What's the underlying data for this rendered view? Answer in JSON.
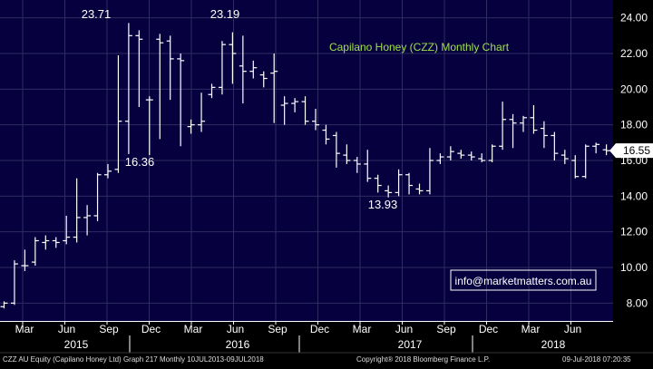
{
  "chart_data": {
    "type": "ohlc",
    "title": "Capilano Honey (CZZ) Monthly Chart",
    "ylim": [
      7,
      25
    ],
    "y_ticks": [
      "8.00",
      "10.00",
      "12.00",
      "14.00",
      "16.00",
      "18.00",
      "20.00",
      "22.00",
      "24.00"
    ],
    "grid": true,
    "last_price_label": "16.55",
    "x_month_labels": [
      "Mar",
      "Jun",
      "Sep",
      "Dec",
      "Mar",
      "Jun",
      "Sep",
      "Dec",
      "Mar",
      "Jun",
      "Sep",
      "Dec",
      "Mar",
      "Jun"
    ],
    "x_year_labels": [
      "2015",
      "2016",
      "2017",
      "2018"
    ],
    "annotations": [
      "23.71",
      "23.19",
      "16.36",
      "13.93"
    ],
    "watermark": "info@marketmatters.com.au",
    "bars": [
      {
        "o": 7.8,
        "h": 8.1,
        "l": 7.7,
        "c": 8.0
      },
      {
        "o": 8.0,
        "h": 10.4,
        "l": 7.9,
        "c": 10.2
      },
      {
        "o": 10.1,
        "h": 11.0,
        "l": 9.8,
        "c": 10.1
      },
      {
        "o": 10.3,
        "h": 11.7,
        "l": 10.1,
        "c": 11.5
      },
      {
        "o": 11.4,
        "h": 11.8,
        "l": 11.0,
        "c": 11.5
      },
      {
        "o": 11.5,
        "h": 11.7,
        "l": 11.1,
        "c": 11.4
      },
      {
        "o": 11.5,
        "h": 12.9,
        "l": 11.3,
        "c": 11.7
      },
      {
        "o": 11.7,
        "h": 15.0,
        "l": 11.4,
        "c": 12.8
      },
      {
        "o": 12.8,
        "h": 13.5,
        "l": 11.8,
        "c": 12.9
      },
      {
        "o": 12.9,
        "h": 15.3,
        "l": 12.6,
        "c": 15.2
      },
      {
        "o": 15.2,
        "h": 15.8,
        "l": 15.0,
        "c": 15.4
      },
      {
        "o": 15.5,
        "h": 21.9,
        "l": 15.3,
        "c": 18.2
      },
      {
        "o": 18.2,
        "h": 23.71,
        "l": 16.36,
        "c": 23.0
      },
      {
        "o": 23.0,
        "h": 23.3,
        "l": 19.0,
        "c": 22.8
      },
      {
        "o": 19.4,
        "h": 19.6,
        "l": 16.3,
        "c": 19.4
      },
      {
        "o": 22.8,
        "h": 23.1,
        "l": 17.2,
        "c": 22.6
      },
      {
        "o": 22.7,
        "h": 23.0,
        "l": 19.4,
        "c": 21.7
      },
      {
        "o": 21.7,
        "h": 22.0,
        "l": 16.8,
        "c": 21.6
      },
      {
        "o": 17.9,
        "h": 18.3,
        "l": 17.5,
        "c": 18.0
      },
      {
        "o": 18.0,
        "h": 19.8,
        "l": 17.6,
        "c": 18.2
      },
      {
        "o": 19.7,
        "h": 20.3,
        "l": 19.5,
        "c": 20.1
      },
      {
        "o": 20.1,
        "h": 22.7,
        "l": 19.7,
        "c": 22.5
      },
      {
        "o": 22.5,
        "h": 23.19,
        "l": 20.3,
        "c": 22.0
      },
      {
        "o": 21.3,
        "h": 23.0,
        "l": 19.2,
        "c": 21.0
      },
      {
        "o": 21.0,
        "h": 21.6,
        "l": 20.6,
        "c": 21.2
      },
      {
        "o": 20.8,
        "h": 21.0,
        "l": 20.1,
        "c": 20.6
      },
      {
        "o": 20.9,
        "h": 22.0,
        "l": 18.1,
        "c": 21.0
      },
      {
        "o": 19.1,
        "h": 19.6,
        "l": 18.0,
        "c": 19.2
      },
      {
        "o": 19.2,
        "h": 19.5,
        "l": 18.7,
        "c": 19.3
      },
      {
        "o": 19.3,
        "h": 19.6,
        "l": 18.0,
        "c": 18.2
      },
      {
        "o": 18.2,
        "h": 18.9,
        "l": 17.7,
        "c": 18.0
      },
      {
        "o": 17.7,
        "h": 18.0,
        "l": 16.9,
        "c": 17.2
      },
      {
        "o": 17.4,
        "h": 17.6,
        "l": 15.6,
        "c": 16.4
      },
      {
        "o": 16.3,
        "h": 16.9,
        "l": 15.8,
        "c": 16.0
      },
      {
        "o": 16.0,
        "h": 16.2,
        "l": 15.3,
        "c": 15.8
      },
      {
        "o": 15.8,
        "h": 16.6,
        "l": 14.8,
        "c": 15.0
      },
      {
        "o": 15.0,
        "h": 15.2,
        "l": 14.2,
        "c": 14.6
      },
      {
        "o": 14.3,
        "h": 14.6,
        "l": 13.93,
        "c": 14.2
      },
      {
        "o": 14.2,
        "h": 15.5,
        "l": 14.0,
        "c": 15.2
      },
      {
        "o": 15.2,
        "h": 15.3,
        "l": 14.1,
        "c": 14.6
      },
      {
        "o": 14.4,
        "h": 14.7,
        "l": 14.1,
        "c": 14.3
      },
      {
        "o": 14.3,
        "h": 16.7,
        "l": 14.1,
        "c": 16.0
      },
      {
        "o": 16.0,
        "h": 16.4,
        "l": 15.8,
        "c": 16.2
      },
      {
        "o": 16.2,
        "h": 16.8,
        "l": 16.0,
        "c": 16.5
      },
      {
        "o": 16.4,
        "h": 16.6,
        "l": 16.1,
        "c": 16.3
      },
      {
        "o": 16.3,
        "h": 16.5,
        "l": 16.0,
        "c": 16.2
      },
      {
        "o": 16.1,
        "h": 16.4,
        "l": 15.9,
        "c": 16.0
      },
      {
        "o": 16.0,
        "h": 16.9,
        "l": 15.9,
        "c": 16.8
      },
      {
        "o": 16.8,
        "h": 19.3,
        "l": 16.6,
        "c": 18.3
      },
      {
        "o": 18.3,
        "h": 18.6,
        "l": 16.7,
        "c": 18.1
      },
      {
        "o": 18.1,
        "h": 18.5,
        "l": 17.6,
        "c": 18.4
      },
      {
        "o": 18.4,
        "h": 19.1,
        "l": 17.5,
        "c": 17.7
      },
      {
        "o": 17.8,
        "h": 18.2,
        "l": 16.7,
        "c": 17.4
      },
      {
        "o": 17.4,
        "h": 17.6,
        "l": 16.0,
        "c": 16.4
      },
      {
        "o": 16.3,
        "h": 16.6,
        "l": 15.8,
        "c": 16.1
      },
      {
        "o": 16.0,
        "h": 16.3,
        "l": 15.0,
        "c": 15.1
      },
      {
        "o": 15.1,
        "h": 16.9,
        "l": 15.0,
        "c": 16.8
      },
      {
        "o": 16.8,
        "h": 17.0,
        "l": 16.4,
        "c": 16.9
      },
      {
        "o": 16.6,
        "h": 16.9,
        "l": 16.3,
        "c": 16.55
      }
    ]
  },
  "footer": {
    "left": "CZZ AU Equity (Capilano Honey Ltd) Graph 217  Monthly 10JUL2013-09JUL2018",
    "center": "Copyright® 2018 Bloomberg Finance L.P.",
    "right": "09-Jul-2018 07:20:35"
  },
  "colors": {
    "background": "#07003f",
    "grid": "#2e2c60",
    "bar": "#ffffff",
    "axis_text": "#ffffff",
    "title": "#9fe14a",
    "price_badge_bg": "#ffffff",
    "price_badge_text": "#000000"
  }
}
